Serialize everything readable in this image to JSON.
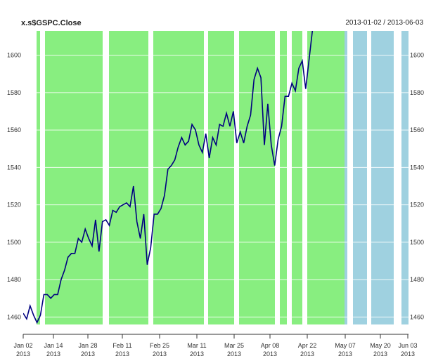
{
  "chart_data": {
    "type": "line",
    "title": "x.s$GSPC.Close",
    "date_range": "2013-01-02 / 2013-06-03",
    "y_ticks": [
      1460,
      1480,
      1500,
      1520,
      1540,
      1560,
      1580,
      1600
    ],
    "y_axes": "left and right",
    "ylim": [
      1456,
      1613
    ],
    "grid": "horizontal",
    "x_ticks": [
      {
        "date": "Jan 02",
        "year": "2013"
      },
      {
        "date": "Jan 14",
        "year": "2013"
      },
      {
        "date": "Jan 28",
        "year": "2013"
      },
      {
        "date": "Feb 11",
        "year": "2013"
      },
      {
        "date": "Feb 25",
        "year": "2013"
      },
      {
        "date": "Mar 11",
        "year": "2013"
      },
      {
        "date": "Mar 25",
        "year": "2013"
      },
      {
        "date": "Apr 08",
        "year": "2013"
      },
      {
        "date": "Apr 22",
        "year": "2013"
      },
      {
        "date": "May 07",
        "year": "2013"
      },
      {
        "date": "May 20",
        "year": "2013"
      },
      {
        "date": "Jun 03",
        "year": "2013"
      }
    ],
    "series": [
      {
        "color": "#000080",
        "values": [
          1462,
          1459,
          1466,
          1461,
          1457,
          1461,
          1472,
          1472,
          1470,
          1472,
          1472,
          1480,
          1485,
          1492,
          1494,
          1494,
          1502,
          1500,
          1507,
          1502,
          1498,
          1512,
          1495,
          1511,
          1512,
          1509,
          1517,
          1516,
          1519,
          1520,
          1521,
          1519,
          1530,
          1511,
          1502,
          1515,
          1488,
          1497,
          1515,
          1515,
          1518,
          1525,
          1539,
          1541,
          1544,
          1551,
          1556,
          1552,
          1554,
          1563,
          1560,
          1552,
          1548,
          1558,
          1545,
          1556,
          1552,
          1563,
          1562,
          1569,
          1562,
          1570,
          1553,
          1559,
          1553,
          1562,
          1568,
          1587,
          1593,
          1588,
          1552,
          1574,
          1552,
          1541,
          1555,
          1562,
          1578,
          1578,
          1585,
          1581,
          1593,
          1597,
          1582,
          1598,
          1614
        ]
      }
    ],
    "bands": [
      {
        "color": "#88ee80",
        "role": "up"
      },
      {
        "color": "#9fd1e0",
        "role": "future"
      }
    ]
  }
}
